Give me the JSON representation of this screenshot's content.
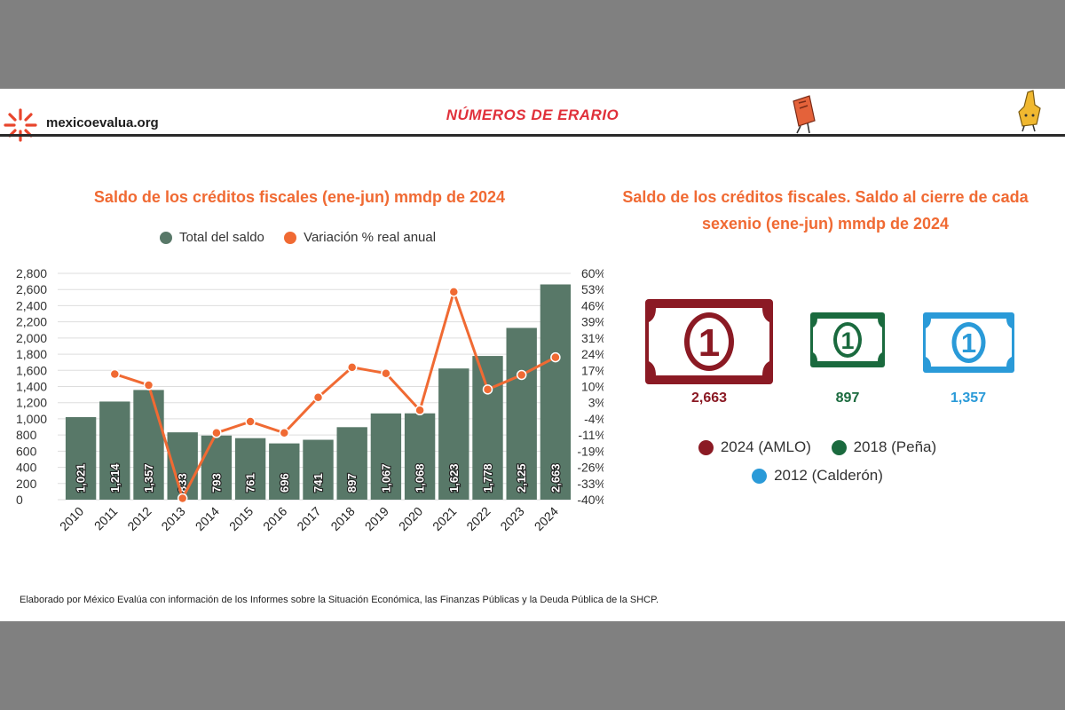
{
  "header": {
    "logo_text": "mexicoevalua.org",
    "brand_text": "NÚMEROS DE ERARIO"
  },
  "left_chart": {
    "title": "Saldo de los créditos fiscales  (ene-jun) mmdp de 2024",
    "legend": [
      "Total del saldo",
      "Variación % real anual"
    ]
  },
  "right_chart": {
    "title": "Saldo de los créditos fiscales. Saldo al cierre de cada sexenio (ene-jun) mmdp de 2024",
    "bill_symbol": "1",
    "bills": [
      {
        "label": "2024 (AMLO)",
        "value": "2,663",
        "color": "#8b1a24"
      },
      {
        "label": "2018 (Peña)",
        "value": "897",
        "color": "#1a6a3e"
      },
      {
        "label": "2012 (Calderón)",
        "value": "1,357",
        "color": "#2a9ad8"
      }
    ]
  },
  "source": "Elaborado por México Evalúa con información de los Informes sobre la Situación Económica, las Finanzas Públicas y la Deuda Pública de la SHCP.",
  "chart_data": [
    {
      "type": "bar",
      "title": "Saldo de los créditos fiscales  (ene-jun) mmdp de 2024",
      "categories": [
        "2010",
        "2011",
        "2012",
        "2013",
        "2014",
        "2015",
        "2016",
        "2017",
        "2018",
        "2019",
        "2020",
        "2021",
        "2022",
        "2023",
        "2024"
      ],
      "series": [
        {
          "name": "Total del saldo",
          "type": "bar",
          "axis": "left",
          "color": "#587868",
          "values": [
            1021,
            1214,
            1357,
            833,
            793,
            761,
            696,
            741,
            897,
            1067,
            1068,
            1623,
            1778,
            2125,
            2663
          ],
          "labels": [
            "1,021",
            "1,214",
            "1,357",
            "833",
            "793",
            "761",
            "696",
            "741",
            "897",
            "1,067",
            "1,068",
            "1,623",
            "1,778",
            "2,125",
            "2,663"
          ]
        },
        {
          "name": "Variación % real anual",
          "type": "line",
          "axis": "right",
          "color": "#f06a33",
          "values": [
            null,
            15.5,
            10.6,
            -39.4,
            -10.5,
            -5.5,
            -10.5,
            5.2,
            18.5,
            15.8,
            -0.5,
            51.8,
            8.7,
            15.1,
            22.9
          ]
        }
      ],
      "y_left": {
        "ylim": [
          0,
          2800
        ],
        "ticks": [
          "0",
          "200",
          "400",
          "600",
          "800",
          "1,000",
          "1,200",
          "1,400",
          "1,600",
          "1,800",
          "2,000",
          "2,200",
          "2,400",
          "2,600",
          "2,800"
        ]
      },
      "y_right": {
        "ylim": [
          -40,
          60
        ],
        "ticks": [
          "-40%",
          "-33%",
          "-26%",
          "-19%",
          "-11%",
          "-4%",
          "3%",
          "10%",
          "17%",
          "24%",
          "31%",
          "39%",
          "46%",
          "53%",
          "60%"
        ]
      },
      "grid": true,
      "legend_position": "top"
    },
    {
      "type": "bar",
      "title": "Saldo de los créditos fiscales. Saldo al cierre de cada sexenio (ene-jun) mmdp de 2024",
      "categories": [
        "2024 (AMLO)",
        "2018 (Peña)",
        "2012 (Calderón)"
      ],
      "values": [
        2663,
        897,
        1357
      ],
      "labels": [
        "2,663",
        "897",
        "1,357"
      ]
    }
  ]
}
